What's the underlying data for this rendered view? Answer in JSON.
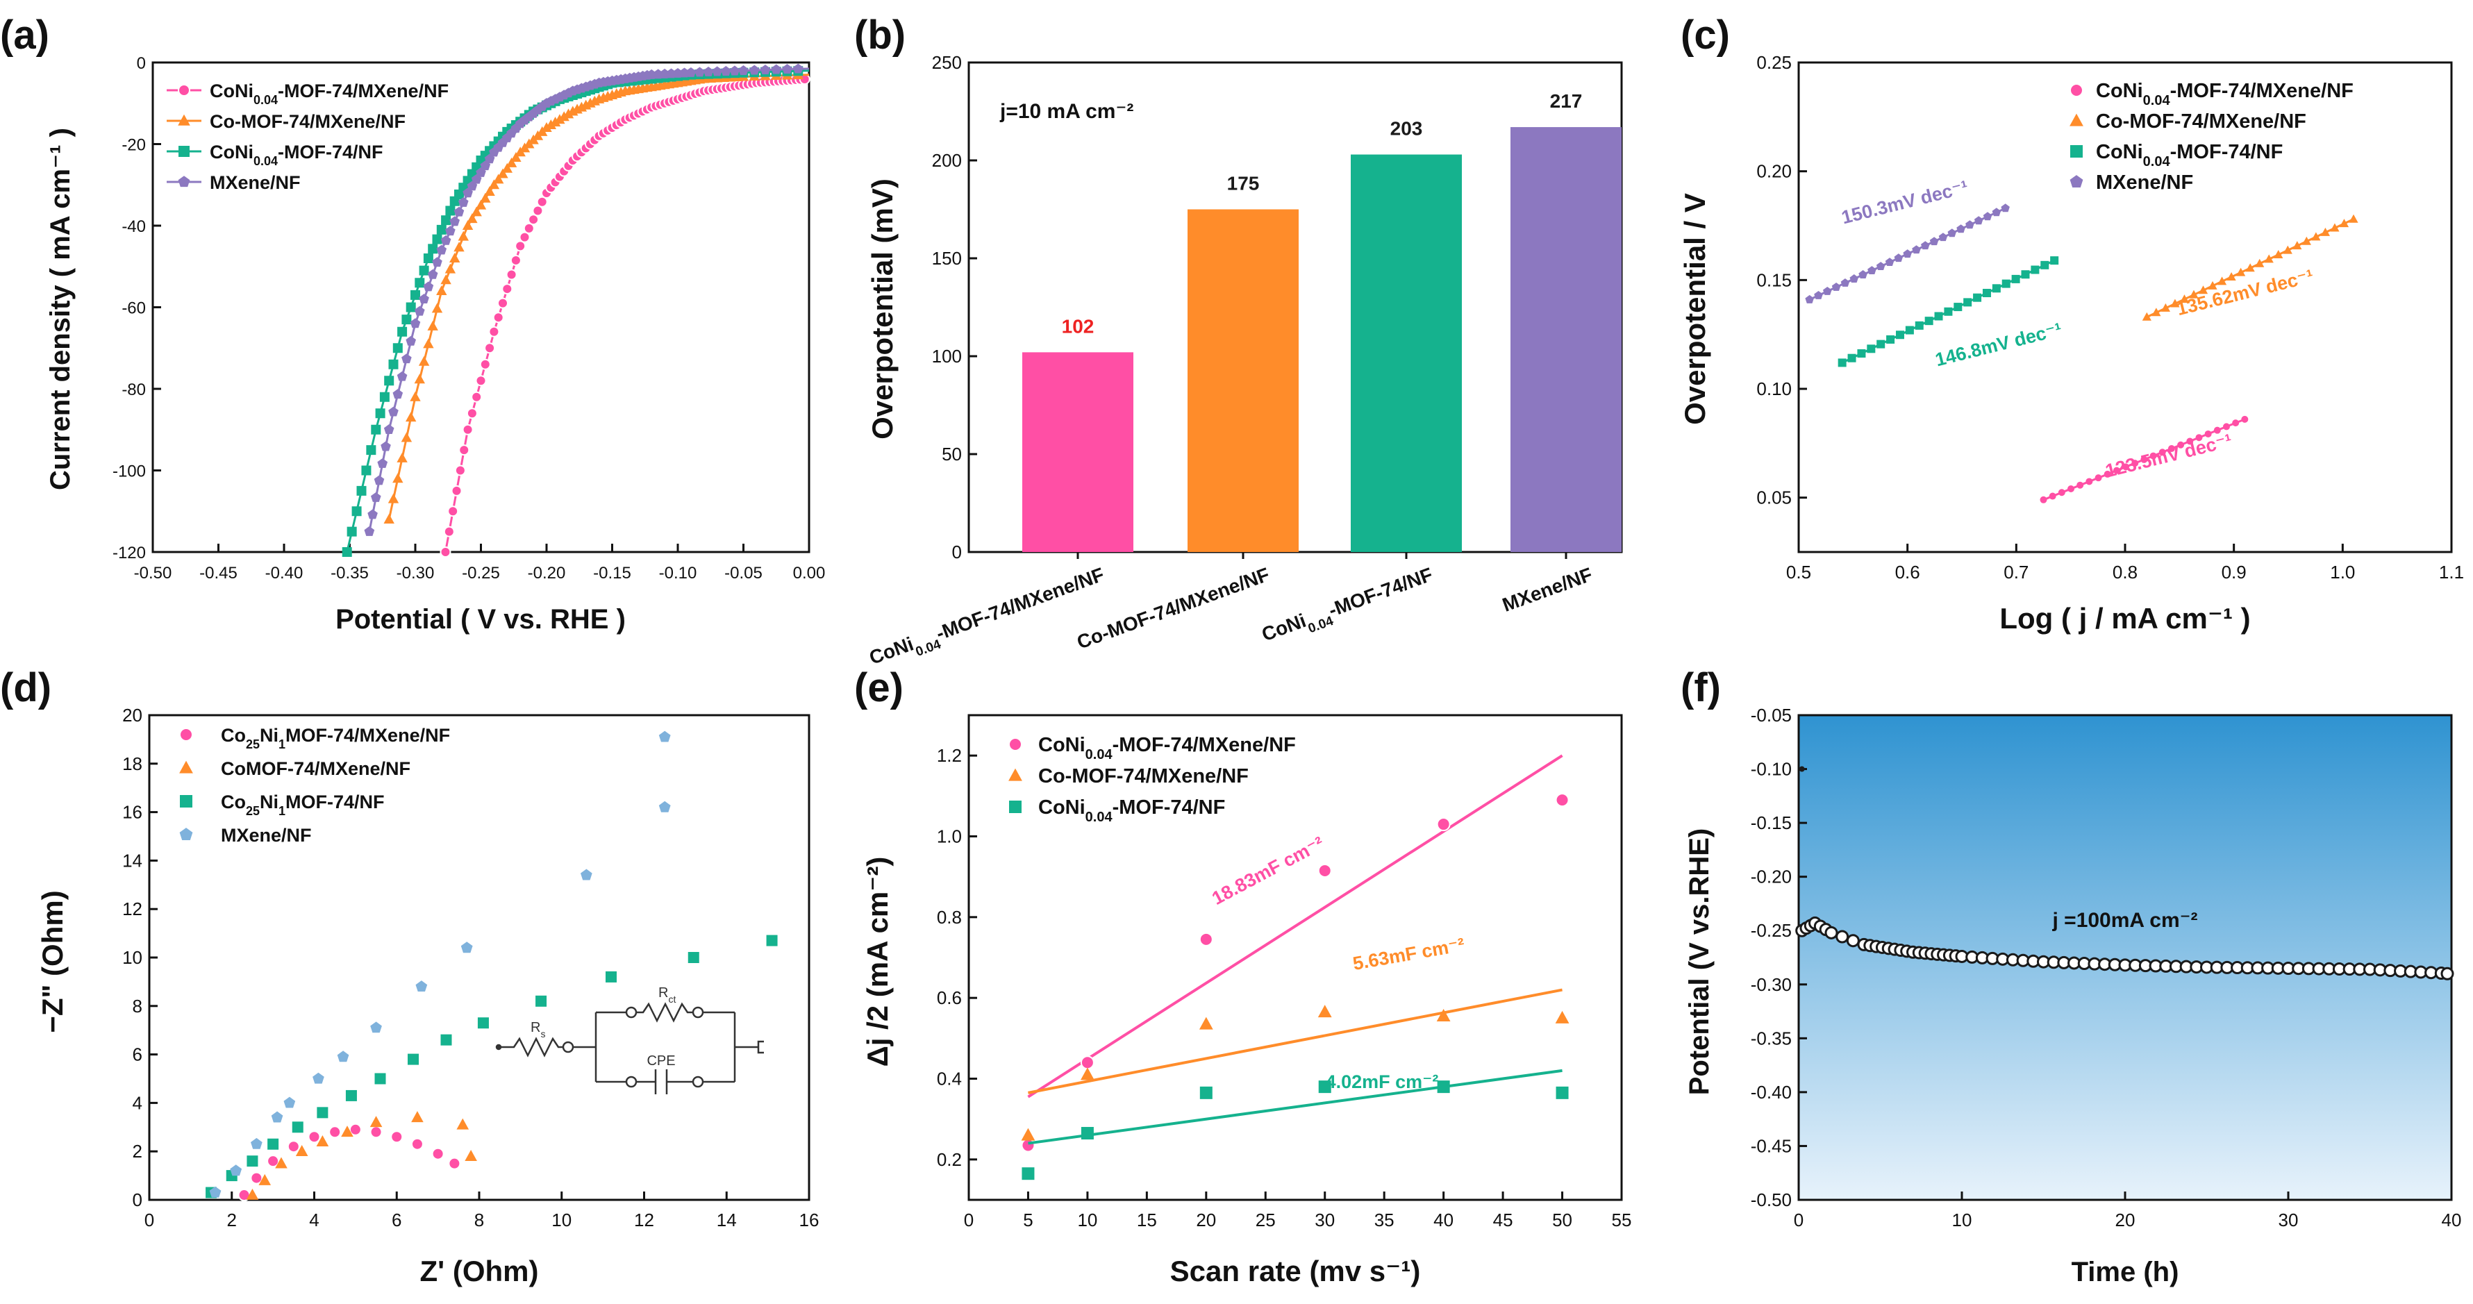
{
  "figure": {
    "colors": {
      "pink": "#ff4fa5",
      "orange": "#ff8c2a",
      "teal": "#15b28e",
      "purple": "#8c78c0",
      "blue": "#7fb2dc",
      "black": "#1a1a1a",
      "red_label": "#ee2222"
    }
  },
  "chart_data": [
    {
      "panel": "(a)",
      "type": "line",
      "xlabel": "Potential ( V vs. RHE )",
      "ylabel": "Current density ( mA cm⁻¹ )",
      "xlim": [
        -0.5,
        0.0
      ],
      "ylim": [
        -120,
        0
      ],
      "xticks": [
        "-0.50",
        "-0.45",
        "-0.40",
        "-0.35",
        "-0.30",
        "-0.25",
        "-0.20",
        "-0.15",
        "-0.10",
        "-0.05",
        "0.00"
      ],
      "yticks": [
        "0",
        "-20",
        "-40",
        "-60",
        "-80",
        "-100",
        "-120"
      ],
      "legend": "top-left",
      "series": [
        {
          "name": "CoNi0.04-MOF-74/MXene/NF",
          "label_main": "CoNi",
          "label_sub": "0.04",
          "label_rest": "-MOF-74/MXene/NF",
          "color_key": "pink",
          "marker": "circle",
          "x": [
            -0.277,
            -0.26,
            -0.24,
            -0.22,
            -0.2,
            -0.18,
            -0.16,
            -0.14,
            -0.12,
            -0.1,
            -0.08,
            -0.06,
            -0.04,
            -0.02,
            0.0
          ],
          "y": [
            -120,
            -90,
            -66,
            -45,
            -32,
            -24,
            -18,
            -14,
            -11,
            -9,
            -7,
            -6,
            -5,
            -4.5,
            -4
          ]
        },
        {
          "name": "Co-MOF-74/MXene/NF",
          "color_key": "orange",
          "marker": "triangle",
          "x": [
            -0.32,
            -0.3,
            -0.28,
            -0.26,
            -0.24,
            -0.22,
            -0.2,
            -0.18,
            -0.16,
            -0.14,
            -0.12,
            -0.1,
            -0.08,
            -0.05,
            0.0
          ],
          "y": [
            -112,
            -82,
            -56,
            -40,
            -30,
            -22,
            -16,
            -12,
            -9,
            -7,
            -6,
            -5,
            -4,
            -3.5,
            -3
          ]
        },
        {
          "name": "CoNi0.04-MOF-74/NF",
          "label_main": "CoNi",
          "label_sub": "0.04",
          "label_rest": "-MOF-74/NF",
          "color_key": "teal",
          "marker": "square",
          "x": [
            -0.352,
            -0.33,
            -0.31,
            -0.29,
            -0.27,
            -0.25,
            -0.23,
            -0.21,
            -0.19,
            -0.17,
            -0.15,
            -0.12,
            -0.09,
            -0.05,
            0.0
          ],
          "y": [
            -120,
            -90,
            -66,
            -48,
            -34,
            -24,
            -17,
            -12,
            -9,
            -7,
            -5,
            -4,
            -3,
            -2.5,
            -2
          ]
        },
        {
          "name": "MXene/NF",
          "color_key": "purple",
          "marker": "pentagon",
          "x": [
            -0.335,
            -0.32,
            -0.3,
            -0.28,
            -0.26,
            -0.24,
            -0.22,
            -0.2,
            -0.18,
            -0.16,
            -0.14,
            -0.12,
            -0.09,
            -0.05,
            0.0
          ],
          "y": [
            -115,
            -90,
            -64,
            -46,
            -32,
            -22,
            -15,
            -10,
            -7,
            -5,
            -4,
            -3,
            -2.5,
            -2,
            -1.5
          ]
        }
      ]
    },
    {
      "panel": "(b)",
      "type": "bar",
      "ylabel": "Overpotential (mV)",
      "ylim": [
        0,
        250
      ],
      "yticks": [
        "0",
        "50",
        "100",
        "150",
        "200",
        "250"
      ],
      "annotation": "j=10 mA cm⁻²",
      "categories": [
        {
          "main": "CoNi",
          "sub": "0.04",
          "rest": "-MOF-74/MXene/NF"
        },
        {
          "main": "Co-MOF-74/MXene/NF",
          "sub": "",
          "rest": ""
        },
        {
          "main": "CoNi",
          "sub": "0.04",
          "rest": "-MOF-74/NF"
        },
        {
          "main": "MXene/NF",
          "sub": "",
          "rest": ""
        }
      ],
      "values": [
        102,
        175,
        203,
        217
      ],
      "value_labels": [
        "102",
        "175",
        "203",
        "217"
      ],
      "color_keys": [
        "pink",
        "orange",
        "teal",
        "purple"
      ],
      "label_color_keys": [
        "red_label",
        "black",
        "black",
        "black"
      ]
    },
    {
      "panel": "(c)",
      "type": "scatter",
      "xlabel": "Log ( j / mA cm⁻¹ )",
      "ylabel": "Overpotential / V",
      "xlim": [
        0.5,
        1.1
      ],
      "ylim": [
        0.025,
        0.25
      ],
      "xticks": [
        "0.5",
        "0.6",
        "0.7",
        "0.8",
        "0.9",
        "1.0",
        "1.1"
      ],
      "yticks": [
        "0.05",
        "0.10",
        "0.15",
        "0.20",
        "0.25"
      ],
      "legend": "top-right",
      "series": [
        {
          "name": "CoNi0.04-MOF-74/MXene/NF",
          "label_main": "CoNi",
          "label_sub": "0.04",
          "label_rest": "-MOF-74/MXene/NF",
          "color_key": "pink",
          "marker": "circle",
          "x_range": [
            0.725,
            0.91
          ],
          "y_range": [
            0.049,
            0.086
          ],
          "slope_label": "123.5mV dec⁻¹"
        },
        {
          "name": "Co-MOF-74/MXene/NF",
          "color_key": "orange",
          "marker": "triangle",
          "x_range": [
            0.82,
            1.01
          ],
          "y_range": [
            0.133,
            0.178
          ],
          "slope_label": "135.62mV dec⁻¹"
        },
        {
          "name": "CoNi0.04-MOF-74/NF",
          "label_main": "CoNi",
          "label_sub": "0.04",
          "label_rest": "-MOF-74/NF",
          "color_key": "teal",
          "marker": "square",
          "x_range": [
            0.54,
            0.735
          ],
          "y_range": [
            0.112,
            0.159
          ],
          "slope_label": "146.8mV dec⁻¹"
        },
        {
          "name": "MXene/NF",
          "color_key": "purple",
          "marker": "pentagon",
          "x_range": [
            0.51,
            0.69
          ],
          "y_range": [
            0.141,
            0.183
          ],
          "slope_label": "150.3mV dec⁻¹"
        }
      ]
    },
    {
      "panel": "(d)",
      "type": "scatter",
      "xlabel": "Z' (Ohm)",
      "ylabel": "−Z\" (Ohm)",
      "xlim": [
        0,
        16
      ],
      "ylim": [
        0,
        20
      ],
      "xticks": [
        "0",
        "2",
        "4",
        "6",
        "8",
        "10",
        "12",
        "14",
        "16"
      ],
      "yticks": [
        "0",
        "2",
        "4",
        "6",
        "8",
        "10",
        "12",
        "14",
        "16",
        "18",
        "20"
      ],
      "legend": "top-left",
      "circuit_labels": {
        "rs": "R",
        "rs_sub": "s",
        "rct": "R",
        "rct_sub": "ct",
        "cpe": "CPE"
      },
      "series": [
        {
          "name": "Co25Ni1MOF-74/MXene/NF",
          "label_main": "Co",
          "label_sub": "25",
          "label_mid": "Ni",
          "label_sub2": "1",
          "label_rest": "MOF-74/MXene/NF",
          "color_key": "pink",
          "marker": "circle",
          "x": [
            2.3,
            2.6,
            3.0,
            3.5,
            4.0,
            4.5,
            5.0,
            5.5,
            6.0,
            6.5,
            7.0,
            7.4
          ],
          "y": [
            0.2,
            0.9,
            1.6,
            2.2,
            2.6,
            2.8,
            2.9,
            2.8,
            2.6,
            2.3,
            1.9,
            1.5
          ]
        },
        {
          "name": "CoMOF-74/MXene/NF",
          "color_key": "orange",
          "marker": "triangle",
          "x": [
            2.5,
            2.8,
            3.2,
            3.7,
            4.2,
            4.8,
            5.5,
            6.5,
            7.6,
            7.8
          ],
          "y": [
            0.2,
            0.8,
            1.5,
            2.0,
            2.4,
            2.8,
            3.2,
            3.4,
            3.1,
            1.8
          ]
        },
        {
          "name": "Co25Ni1MOF-74/NF",
          "label_main": "Co",
          "label_sub": "25",
          "label_mid": "Ni",
          "label_sub2": "1",
          "label_rest": "MOF-74/NF",
          "color_key": "teal",
          "marker": "square",
          "x": [
            1.5,
            2.0,
            2.5,
            3.0,
            3.6,
            4.2,
            4.9,
            5.6,
            6.4,
            7.2,
            8.1,
            9.5,
            11.2,
            13.2,
            15.1
          ],
          "y": [
            0.3,
            1.0,
            1.6,
            2.3,
            3.0,
            3.6,
            4.3,
            5.0,
            5.8,
            6.6,
            7.3,
            8.2,
            9.2,
            10.0,
            10.7
          ]
        },
        {
          "name": "MXene/NF",
          "color_key": "blue",
          "marker": "pentagon",
          "x": [
            1.6,
            2.1,
            2.6,
            3.1,
            3.4,
            4.1,
            4.7,
            5.5,
            6.6,
            7.7,
            10.6,
            12.5
          ],
          "y": [
            0.3,
            1.2,
            2.3,
            3.4,
            4.0,
            5.0,
            5.9,
            7.1,
            8.8,
            10.4,
            13.4,
            16.2
          ]
        }
      ],
      "extra_points": [
        {
          "x": 12.5,
          "y": 19.1
        }
      ]
    },
    {
      "panel": "(e)",
      "type": "scatter",
      "xlabel": "Scan rate (mv s⁻¹)",
      "ylabel": "Δj /2 (mA cm⁻²)",
      "xlim": [
        0,
        55
      ],
      "ylim": [
        0.1,
        1.3
      ],
      "xticks": [
        "0",
        "5",
        "10",
        "15",
        "20",
        "25",
        "30",
        "35",
        "40",
        "45",
        "50",
        "55"
      ],
      "yticks": [
        "0.2",
        "0.4",
        "0.6",
        "0.8",
        "1.0",
        "1.2"
      ],
      "legend": "top-left",
      "x": [
        5,
        10,
        20,
        30,
        40,
        50
      ],
      "series": [
        {
          "name": "CoNi0.04-MOF-74/MXene/NF",
          "label_main": "CoNi",
          "label_sub": "0.04",
          "label_rest": "-MOF-74/MXene/NF",
          "color_key": "pink",
          "marker": "circle",
          "values": [
            0.235,
            0.44,
            0.745,
            0.915,
            1.03,
            1.09
          ],
          "fit": [
            0.355,
            1.2
          ],
          "slope_label": "18.83mF cm⁻²"
        },
        {
          "name": "Co-MOF-74/MXene/NF",
          "color_key": "orange",
          "marker": "triangle",
          "values": [
            0.26,
            0.41,
            0.535,
            0.565,
            0.555,
            0.55
          ],
          "fit": [
            0.365,
            0.62
          ],
          "slope_label": "5.63mF cm⁻²"
        },
        {
          "name": "CoNi0.04-MOF-74/NF",
          "label_main": "CoNi",
          "label_sub": "0.04",
          "label_rest": "-MOF-74/NF",
          "color_key": "teal",
          "marker": "square",
          "values": [
            0.165,
            0.265,
            0.365,
            0.38,
            0.38,
            0.365
          ],
          "fit": [
            0.24,
            0.42
          ],
          "slope_label": "4.02mF cm⁻²"
        }
      ]
    },
    {
      "panel": "(f)",
      "type": "line",
      "xlabel": "Time (h)",
      "ylabel": "Potential (V vs.RHE)",
      "xlim": [
        0,
        40
      ],
      "ylim": [
        -0.5,
        -0.05
      ],
      "xticks": [
        "0",
        "10",
        "20",
        "30",
        "40"
      ],
      "yticks": [
        "-0.05",
        "-0.10",
        "-0.15",
        "-0.20",
        "-0.25",
        "-0.30",
        "-0.35",
        "-0.40",
        "-0.45",
        "-0.50"
      ],
      "annotation": "j =100mA cm⁻²",
      "series": [
        {
          "name": "stability",
          "color_key": "black",
          "marker": "circle",
          "x": [
            0.2,
            1,
            2,
            4,
            7,
            10,
            15,
            20,
            25,
            30,
            35,
            40
          ],
          "y": [
            -0.25,
            -0.243,
            -0.252,
            -0.263,
            -0.27,
            -0.274,
            -0.279,
            -0.282,
            -0.284,
            -0.285,
            -0.286,
            -0.29
          ]
        }
      ]
    }
  ]
}
